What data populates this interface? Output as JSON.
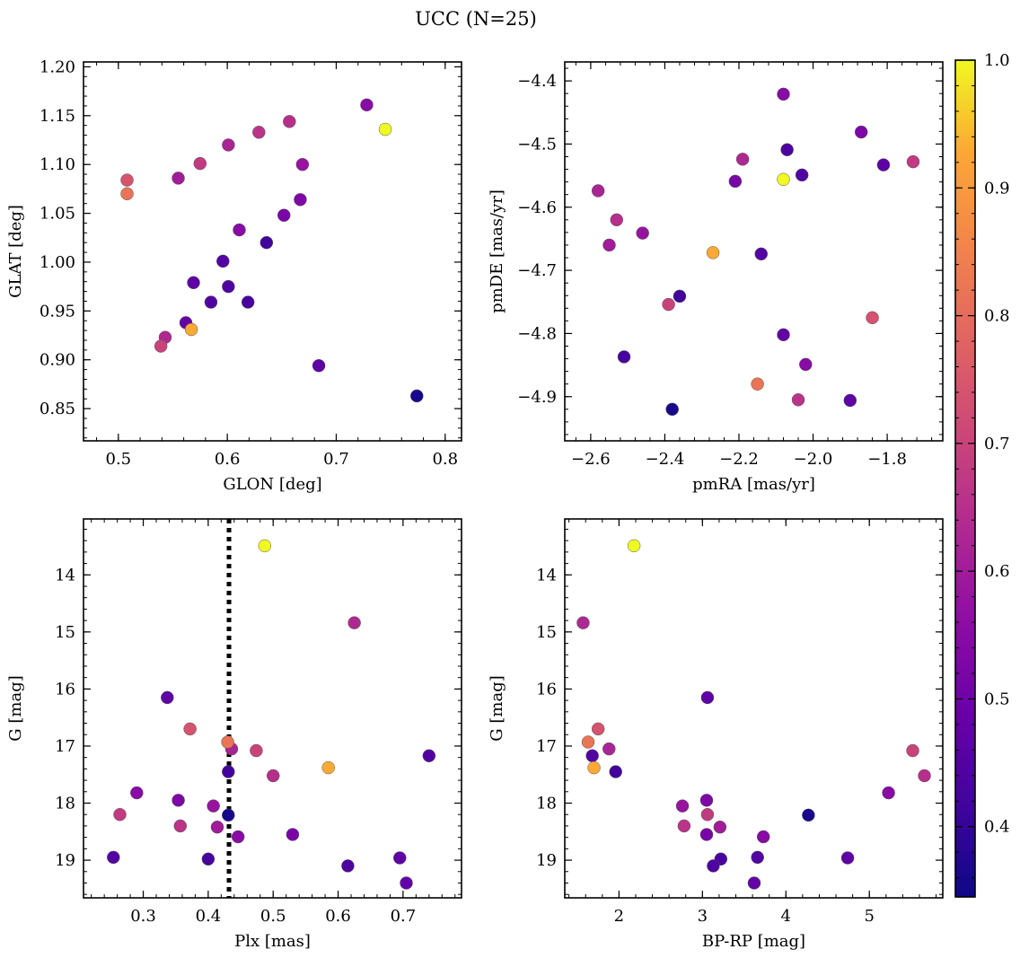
{
  "figure": {
    "title": "UCC (N=25)"
  },
  "colorbar": {
    "range": [
      0.345,
      1.0
    ],
    "ticks": [
      "0.4",
      "0.5",
      "0.6",
      "0.7",
      "0.8",
      "0.9",
      "1.0"
    ],
    "colormap": "plasma"
  },
  "chart_data": [
    {
      "type": "scatter",
      "id": "glon-glat",
      "xlabel": "GLON [deg]",
      "ylabel": "GLAT [deg]",
      "xlim": [
        0.468,
        0.815
      ],
      "ylim": [
        0.817,
        1.205
      ],
      "xticks": [
        "0.5",
        "0.6",
        "0.7",
        "0.8"
      ],
      "yticks": [
        "0.85",
        "0.90",
        "0.95",
        "1.00",
        "1.05",
        "1.10",
        "1.15",
        "1.20"
      ],
      "x": [
        0.745,
        0.508,
        0.508,
        0.567,
        0.539,
        0.728,
        0.543,
        0.657,
        0.629,
        0.601,
        0.575,
        0.669,
        0.555,
        0.667,
        0.652,
        0.611,
        0.636,
        0.596,
        0.569,
        0.601,
        0.585,
        0.619,
        0.562,
        0.684,
        0.774
      ],
      "y": [
        1.136,
        1.084,
        1.07,
        0.931,
        0.914,
        1.161,
        0.923,
        1.144,
        1.133,
        1.12,
        1.101,
        1.1,
        1.086,
        1.064,
        1.048,
        1.033,
        1.02,
        1.001,
        0.979,
        0.975,
        0.959,
        0.959,
        0.938,
        0.894,
        0.863
      ]
    },
    {
      "type": "scatter",
      "id": "pmra-pmde",
      "xlabel": "pmRA [mas/yr]",
      "ylabel": "pmDE [mas/yr]",
      "xlim": [
        -2.67,
        -1.65
      ],
      "ylim": [
        -4.97,
        -4.37
      ],
      "xticks": [
        "−2.6",
        "−2.4",
        "−2.2",
        "−2.0",
        "−1.8"
      ],
      "yticks": [
        "−4.4",
        "−4.5",
        "−4.6",
        "−4.7",
        "−4.8",
        "−4.9"
      ],
      "x": [
        -2.08,
        -1.84,
        -2.15,
        -2.27,
        -2.39,
        -2.08,
        -2.19,
        -2.53,
        -2.04,
        -2.58,
        -1.73,
        -2.46,
        -2.55,
        -1.87,
        -2.21,
        -2.02,
        -2.36,
        -2.03,
        -1.81,
        -2.07,
        -2.14,
        -2.51,
        -2.08,
        -1.9,
        -2.38
      ],
      "y": [
        -4.556,
        -4.775,
        -4.88,
        -4.672,
        -4.754,
        -4.421,
        -4.524,
        -4.62,
        -4.905,
        -4.574,
        -4.528,
        -4.641,
        -4.66,
        -4.481,
        -4.559,
        -4.849,
        -4.741,
        -4.549,
        -4.533,
        -4.509,
        -4.674,
        -4.837,
        -4.802,
        -4.906,
        -4.92
      ]
    },
    {
      "type": "scatter",
      "id": "plx-g",
      "xlabel": "Plx [mas]",
      "ylabel": "G [mag]",
      "xlim": [
        0.208,
        0.79
      ],
      "ylim": [
        19.66,
        13.02
      ],
      "yinverted": true,
      "xticks": [
        "0.3",
        "0.4",
        "0.5",
        "0.6",
        "0.7"
      ],
      "yticks": [
        "14",
        "15",
        "16",
        "17",
        "18",
        "19"
      ],
      "vline": {
        "x": 0.432,
        "style": "dotted"
      },
      "x": [
        0.487,
        0.372,
        0.43,
        0.585,
        0.474,
        0.29,
        0.625,
        0.5,
        0.357,
        0.436,
        0.264,
        0.408,
        0.414,
        0.354,
        0.53,
        0.446,
        0.431,
        0.74,
        0.337,
        0.615,
        0.254,
        0.4,
        0.705,
        0.695,
        0.431
      ],
      "y": [
        13.49,
        16.7,
        16.93,
        17.38,
        17.08,
        17.82,
        14.84,
        17.52,
        18.4,
        17.05,
        18.2,
        18.05,
        18.42,
        17.95,
        18.55,
        18.59,
        17.45,
        17.17,
        16.15,
        19.1,
        18.95,
        18.98,
        19.4,
        18.96,
        18.21
      ]
    },
    {
      "type": "scatter",
      "id": "bprp-g",
      "xlabel": "BP-RP [mag]",
      "ylabel": "G [mag]",
      "xlim": [
        1.35,
        5.88
      ],
      "ylim": [
        19.66,
        13.02
      ],
      "yinverted": true,
      "xticks": [
        "2",
        "3",
        "4",
        "5"
      ],
      "yticks": [
        "14",
        "15",
        "16",
        "17",
        "18",
        "19"
      ],
      "x": [
        2.18,
        1.75,
        1.63,
        1.7,
        5.52,
        5.23,
        1.57,
        5.66,
        2.78,
        1.88,
        3.06,
        2.76,
        3.21,
        3.05,
        3.05,
        3.73,
        1.96,
        1.68,
        3.06,
        3.13,
        3.66,
        3.22,
        3.62,
        4.74,
        4.27
      ],
      "y": [
        13.49,
        16.7,
        16.93,
        17.38,
        17.08,
        17.82,
        14.84,
        17.52,
        18.4,
        17.05,
        18.2,
        18.05,
        18.42,
        17.95,
        18.55,
        18.59,
        17.45,
        17.17,
        16.15,
        19.1,
        18.95,
        18.98,
        19.4,
        18.96,
        18.21
      ]
    }
  ],
  "probabilities": [
    1.0,
    0.74,
    0.82,
    0.93,
    0.7,
    0.55,
    0.63,
    0.65,
    0.66,
    0.62,
    0.68,
    0.58,
    0.6,
    0.53,
    0.52,
    0.55,
    0.42,
    0.45,
    0.47,
    0.44,
    0.45,
    0.43,
    0.48,
    0.47,
    0.36
  ]
}
